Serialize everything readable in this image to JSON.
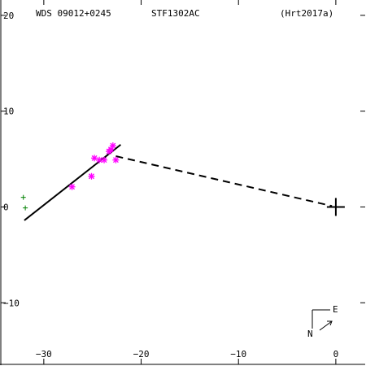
{
  "header": {
    "wds_id": "WDS 09012+0245",
    "discoverer": "STF1302AC",
    "reference": "(Hrt2017a)"
  },
  "compass": {
    "east_label": "E",
    "north_label": "N"
  },
  "colors": {
    "axis": "#000000",
    "measurement": "#ff00ff",
    "early": "#008000",
    "orbit": "#000000"
  },
  "chart_data": {
    "type": "scatter",
    "title": "",
    "xlim": [
      -34.5,
      3.1
    ],
    "ylim": [
      -16.6,
      21.6
    ],
    "x_ticks": [
      -30,
      -20,
      -10,
      0
    ],
    "y_ticks": [
      -10,
      0,
      10,
      20
    ],
    "x_tick_labels": [
      "−30",
      "−20",
      "−10",
      "0"
    ],
    "y_tick_labels": [
      "−10",
      "0",
      "10",
      "20"
    ],
    "primary": {
      "x": 0,
      "y": 0
    },
    "series": [
      {
        "marker": "asterisk",
        "color": "#ff00ff",
        "points": [
          [
            -27.1,
            2.1
          ],
          [
            -25.1,
            3.2
          ],
          [
            -24.8,
            5.1
          ],
          [
            -24.3,
            4.9
          ],
          [
            -23.8,
            4.9
          ],
          [
            -23.3,
            5.8
          ],
          [
            -23.1,
            6.0
          ],
          [
            -22.9,
            6.4
          ],
          [
            -22.6,
            4.9
          ]
        ]
      },
      {
        "marker": "plus",
        "color": "#008000",
        "points": [
          [
            -32.1,
            1.0
          ],
          [
            -31.9,
            -0.1
          ]
        ]
      }
    ],
    "fit_line": {
      "from": [
        -32.0,
        -1.4
      ],
      "to": [
        -22.1,
        6.5
      ]
    },
    "separation_line": {
      "from": [
        -22.6,
        5.3
      ],
      "to": [
        -0.4,
        0.1
      ],
      "style": "dashed"
    }
  }
}
